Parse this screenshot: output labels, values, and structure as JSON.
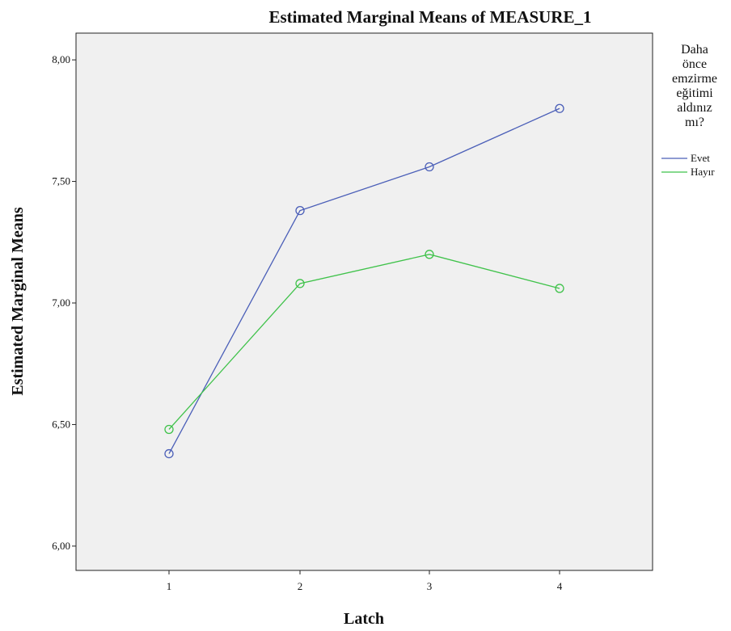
{
  "chart_data": {
    "type": "line",
    "title": "Estimated Marginal Means of MEASURE_1",
    "xlabel": "Latch",
    "ylabel": "Estimated Marginal Means",
    "categories": [
      "1",
      "2",
      "3",
      "4"
    ],
    "ylim": [
      5.9,
      8.11
    ],
    "yticks": [
      "6,00",
      "6,50",
      "7,00",
      "7,50",
      "8,00"
    ],
    "ytick_values": [
      6.0,
      6.5,
      7.0,
      7.5,
      8.0
    ],
    "grid": false,
    "background": "#f0f0f0",
    "legend": {
      "title_lines": [
        "Daha",
        "önce",
        "emzirme",
        "eğitimi",
        "aldınız",
        "mı?"
      ],
      "placement": "right"
    },
    "series": [
      {
        "name": "Evet",
        "color": "#4b5fb8",
        "values": [
          6.38,
          7.38,
          7.56,
          7.8
        ]
      },
      {
        "name": "Hayır",
        "color": "#3fc24a",
        "values": [
          6.48,
          7.08,
          7.2,
          7.06
        ]
      }
    ]
  }
}
